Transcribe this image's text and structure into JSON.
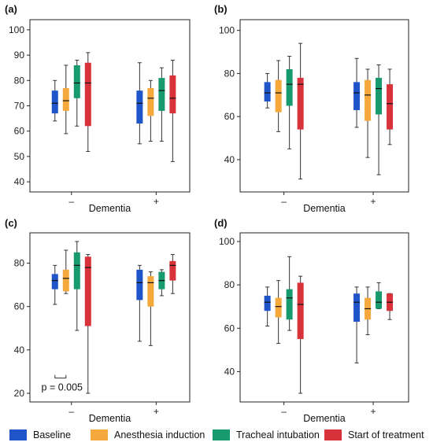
{
  "colors": {
    "baseline": "#1f55c8",
    "anesthesia": "#f5a93c",
    "tracheal": "#169a6e",
    "start": "#d8323a"
  },
  "legend": [
    {
      "key": "baseline",
      "label": "Baseline"
    },
    {
      "key": "anesthesia",
      "label": "Anesthesia induction"
    },
    {
      "key": "tracheal",
      "label": "Tracheal intubation"
    },
    {
      "key": "start",
      "label": "Start of treatment"
    }
  ],
  "chart_data": [
    {
      "panel": "(a)",
      "type": "box",
      "xlabel": "Dementia",
      "categories": [
        "–",
        "+"
      ],
      "ylim": [
        36,
        104
      ],
      "yticks": [
        40,
        50,
        60,
        70,
        80,
        90,
        100
      ],
      "series": [
        {
          "key": "baseline",
          "boxes": [
            {
              "min": 64,
              "q1": 67,
              "median": 71,
              "q3": 76,
              "max": 80
            },
            {
              "min": 55,
              "q1": 63,
              "median": 71,
              "q3": 76,
              "max": 87
            }
          ]
        },
        {
          "key": "anesthesia",
          "boxes": [
            {
              "min": 59,
              "q1": 68,
              "median": 72,
              "q3": 77,
              "max": 86
            },
            {
              "min": 56,
              "q1": 66,
              "median": 73,
              "q3": 77,
              "max": 80
            }
          ]
        },
        {
          "key": "tracheal",
          "boxes": [
            {
              "min": 62,
              "q1": 73,
              "median": 79,
              "q3": 86,
              "max": 88
            },
            {
              "min": 56,
              "q1": 68,
              "median": 76,
              "q3": 81,
              "max": 85
            }
          ]
        },
        {
          "key": "start",
          "boxes": [
            {
              "min": 52,
              "q1": 62,
              "median": 79,
              "q3": 87,
              "max": 91
            },
            {
              "min": 48,
              "q1": 67,
              "median": 73,
              "q3": 82,
              "max": 88
            }
          ]
        }
      ]
    },
    {
      "panel": "(b)",
      "type": "box",
      "xlabel": "Dementia",
      "categories": [
        "–",
        "+"
      ],
      "ylim": [
        25,
        105
      ],
      "yticks": [
        40,
        60,
        80,
        100
      ],
      "series": [
        {
          "key": "baseline",
          "boxes": [
            {
              "min": 64,
              "q1": 67,
              "median": 71,
              "q3": 76,
              "max": 80
            },
            {
              "min": 55,
              "q1": 63,
              "median": 71,
              "q3": 76,
              "max": 87
            }
          ]
        },
        {
          "key": "anesthesia",
          "boxes": [
            {
              "min": 53,
              "q1": 62,
              "median": 71,
              "q3": 77,
              "max": 86
            },
            {
              "min": 41,
              "q1": 58,
              "median": 70,
              "q3": 77,
              "max": 82
            }
          ]
        },
        {
          "key": "tracheal",
          "boxes": [
            {
              "min": 45,
              "q1": 65,
              "median": 75,
              "q3": 82,
              "max": 88
            },
            {
              "min": 33,
              "q1": 61,
              "median": 73,
              "q3": 78,
              "max": 84
            }
          ]
        },
        {
          "key": "start",
          "boxes": [
            {
              "min": 31,
              "q1": 54,
              "median": 75,
              "q3": 78,
              "max": 94
            },
            {
              "min": 47,
              "q1": 54,
              "median": 66,
              "q3": 75,
              "max": 82
            }
          ]
        }
      ]
    },
    {
      "panel": "(c)",
      "type": "box",
      "xlabel": "Dementia",
      "categories": [
        "–",
        "+"
      ],
      "ylim": [
        16,
        94
      ],
      "yticks": [
        20,
        40,
        60,
        80
      ],
      "annotation": "p = 0.005",
      "series": [
        {
          "key": "baseline",
          "boxes": [
            {
              "min": 61,
              "q1": 68,
              "median": 72,
              "q3": 75,
              "max": 79
            },
            {
              "min": 44,
              "q1": 63,
              "median": 71,
              "q3": 77,
              "max": 79
            }
          ]
        },
        {
          "key": "anesthesia",
          "boxes": [
            {
              "min": 66,
              "q1": 67,
              "median": 73,
              "q3": 77,
              "max": 86
            },
            {
              "min": 42,
              "q1": 60,
              "median": 71,
              "q3": 74,
              "max": 76
            }
          ]
        },
        {
          "key": "tracheal",
          "boxes": [
            {
              "min": 49,
              "q1": 68,
              "median": 79,
              "q3": 85,
              "max": 90
            },
            {
              "min": 65,
              "q1": 68,
              "median": 72,
              "q3": 76,
              "max": 77
            }
          ]
        },
        {
          "key": "start",
          "boxes": [
            {
              "min": 20,
              "q1": 51,
              "median": 78,
              "q3": 83,
              "max": 84
            },
            {
              "min": 66,
              "q1": 72,
              "median": 79,
              "q3": 81,
              "max": 84
            }
          ]
        }
      ]
    },
    {
      "panel": "(d)",
      "type": "box",
      "xlabel": "Dementia",
      "categories": [
        "–",
        "+"
      ],
      "ylim": [
        26,
        104
      ],
      "yticks": [
        40,
        60,
        80,
        100
      ],
      "series": [
        {
          "key": "baseline",
          "boxes": [
            {
              "min": 61,
              "q1": 68,
              "median": 72,
              "q3": 75,
              "max": 79
            },
            {
              "min": 44,
              "q1": 63,
              "median": 72,
              "q3": 76,
              "max": 79
            }
          ]
        },
        {
          "key": "anesthesia",
          "boxes": [
            {
              "min": 53,
              "q1": 65,
              "median": 70,
              "q3": 74,
              "max": 82
            },
            {
              "min": 57,
              "q1": 64,
              "median": 69,
              "q3": 74,
              "max": 79
            }
          ]
        },
        {
          "key": "tracheal",
          "boxes": [
            {
              "min": 59,
              "q1": 64,
              "median": 74,
              "q3": 78,
              "max": 93
            },
            {
              "min": 69,
              "q1": 69,
              "median": 72,
              "q3": 77,
              "max": 81
            }
          ]
        },
        {
          "key": "start",
          "boxes": [
            {
              "min": 30,
              "q1": 55,
              "median": 71,
              "q3": 81,
              "max": 84
            },
            {
              "min": 64,
              "q1": 68,
              "median": 72,
              "q3": 76,
              "max": 76
            }
          ]
        }
      ]
    }
  ]
}
